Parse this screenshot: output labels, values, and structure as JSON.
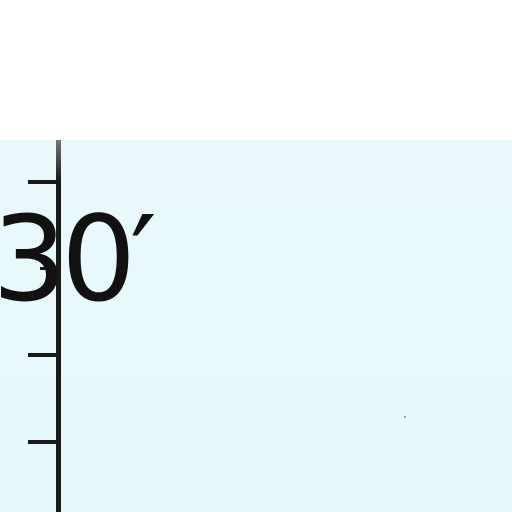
{
  "map": {
    "coordinate_label": "30′",
    "colors": {
      "background": "#ffffff",
      "map_fill": "#e8f8fc",
      "border_line": "#1a1a1a",
      "label": "#111111"
    }
  }
}
